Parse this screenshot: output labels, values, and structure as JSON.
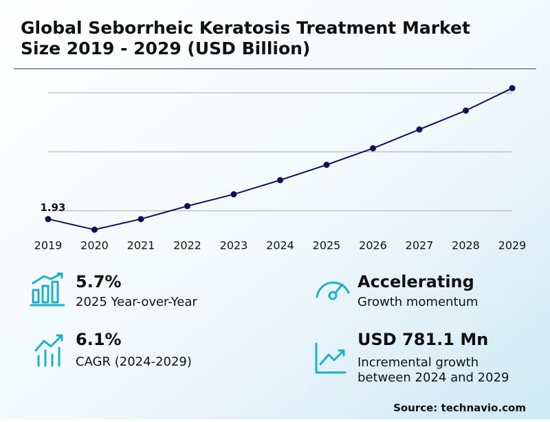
{
  "chart_data": {
    "type": "line",
    "title": "Global Seborrheic Keratosis Treatment Market",
    "subtitle": "Size 2019 - 2029 (USD Billion)",
    "categories": [
      "2019",
      "2020",
      "2021",
      "2022",
      "2023",
      "2024",
      "2025",
      "2026",
      "2027",
      "2028",
      "2029"
    ],
    "series": [
      {
        "color": "#0a0f5c",
        "values": [
          1.93,
          1.84,
          1.93,
          2.04,
          2.14,
          2.26,
          2.39,
          2.53,
          2.69,
          2.85,
          3.04
        ],
        "value_labels": [
          "1.93",
          null,
          null,
          null,
          null,
          null,
          null,
          null,
          null,
          null,
          null
        ]
      }
    ],
    "ylim": [
      1.8,
      3.1
    ],
    "yticks": [
      2,
      2.5,
      3
    ],
    "grid": true,
    "ytick_labels": false
  },
  "stats": [
    {
      "value": "5.7%",
      "label": "2025 Year-over-Year"
    },
    {
      "value": "Accelerating",
      "label": "Growth momentum"
    },
    {
      "value": "6.1%",
      "label": "CAGR (2024-2029)"
    },
    {
      "value": "USD 781.1 Mn",
      "label": "Incremental growth",
      "label2": "between 2024 and 2029"
    }
  ],
  "source": "Source: technavio.com"
}
